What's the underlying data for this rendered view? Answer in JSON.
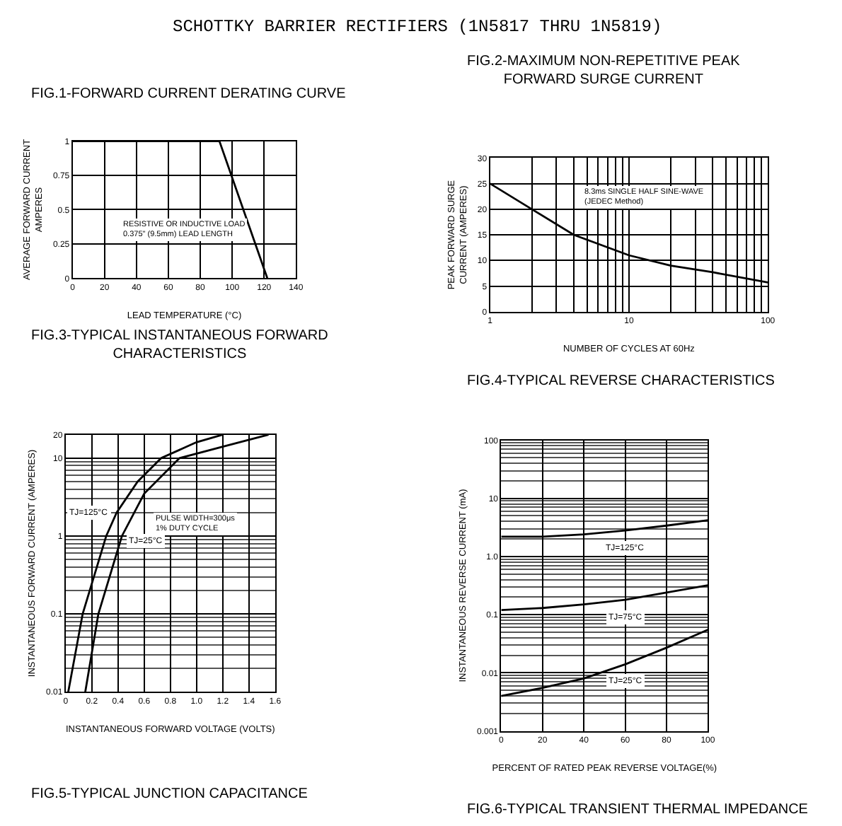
{
  "chart_data": [
    {
      "type": "other",
      "title": "SCHOTTKY BARRIER RECTIFIERS (1N5817 THRU 1N5819)"
    },
    {
      "type": "line",
      "title": "FIG.1-FORWARD CURRENT DERATING CURVE",
      "xlabel": "LEAD TEMPERATURE (°C)",
      "ylabel": "AVERAGE FORWARD CURRENT\nAMPERES",
      "x": [
        0,
        92,
        122
      ],
      "series": [
        {
          "color": "#000000",
          "values": [
            1,
            1,
            0
          ]
        }
      ],
      "xlim": [
        0,
        140
      ],
      "ylim": [
        0,
        1
      ],
      "xticks": [
        0,
        20,
        40,
        60,
        80,
        100,
        120,
        140
      ],
      "yticks": [
        0,
        0.25,
        0.5,
        0.75,
        1
      ],
      "grid": true,
      "annotations": [
        "RESISTIVE OR INDUCTIVE LOAD\n0.375\" (9.5mm) LEAD LENGTH"
      ]
    },
    {
      "type": "line",
      "title": "FIG.2-MAXIMUM NON-REPETITIVE PEAK\nFORWARD SURGE CURRENT",
      "xlabel": "NUMBER OF CYCLES AT 60Hz",
      "ylabel": "PEAK FORWARD SURGE\nCURRENT (AMPERES)",
      "x": [
        1,
        2,
        4,
        10,
        20,
        40,
        100
      ],
      "series": [
        {
          "color": "#000000",
          "values": [
            25,
            20,
            15,
            11,
            9,
            7.7,
            5.7
          ]
        }
      ],
      "xlim": [
        1,
        100
      ],
      "ylim": [
        0,
        30
      ],
      "xticks": [
        1,
        10,
        100
      ],
      "yticks": [
        0,
        5,
        10,
        15,
        20,
        25,
        30
      ],
      "log": "x",
      "grid": true,
      "annotations": [
        "8.3ms SINGLE HALF SINE-WAVE\n(JEDEC Method)"
      ]
    },
    {
      "type": "line",
      "title": "FIG.3-TYPICAL INSTANTANEOUS FORWARD\nCHARACTERISTICS",
      "xlabel": "INSTANTANEOUS FORWARD VOLTAGE (VOLTS)",
      "ylabel": "INSTANTANEOUS FORWARD CURRENT (AMPERES)",
      "series": [
        {
          "name": "TJ=125°C",
          "color": "#000000",
          "x": [
            0.02,
            0.13,
            0.31,
            0.39,
            0.55,
            0.73,
            1.0,
            1.2
          ],
          "values": [
            0.01,
            0.1,
            1,
            2,
            5,
            10,
            16,
            20
          ]
        },
        {
          "name": "TJ=25°C",
          "color": "#000000",
          "x": [
            0.15,
            0.25,
            0.43,
            0.6,
            0.87,
            1.2,
            1.55
          ],
          "values": [
            0.01,
            0.1,
            1,
            3.5,
            10,
            14,
            20
          ]
        }
      ],
      "xlim": [
        0,
        1.6
      ],
      "ylim": [
        0.01,
        20
      ],
      "xticks": [
        0,
        0.2,
        0.4,
        0.6,
        0.8,
        {
          "value": 1,
          "label": "1.0"
        },
        1.2,
        1.4,
        1.6
      ],
      "yticks": [
        0.01,
        0.1,
        1,
        10,
        20
      ],
      "log": "y",
      "grid": true,
      "annotations": [
        "PULSE WIDTH=300μs\n1% DUTY CYCLE"
      ]
    },
    {
      "type": "line",
      "title": "FIG.4-TYPICAL REVERSE CHARACTERISTICS",
      "xlabel": "PERCENT OF RATED PEAK REVERSE VOLTAGE(%)",
      "ylabel": "INSTANTANEOUS REVERSE CURRENT (mA)",
      "x": [
        0,
        20,
        40,
        60,
        80,
        100
      ],
      "series": [
        {
          "name": "TJ=125°C",
          "color": "#000000",
          "values": [
            2.2,
            2.2,
            2.4,
            2.8,
            3.4,
            4.2
          ]
        },
        {
          "name": "TJ=75°C",
          "color": "#000000",
          "values": [
            0.12,
            0.13,
            0.15,
            0.18,
            0.24,
            0.32
          ]
        },
        {
          "name": "TJ=25°C",
          "color": "#000000",
          "values": [
            0.004,
            0.0055,
            0.008,
            0.014,
            0.027,
            0.055
          ]
        }
      ],
      "xlim": [
        0,
        100
      ],
      "ylim": [
        0.001,
        100
      ],
      "xticks": [
        0,
        20,
        40,
        60,
        80,
        100
      ],
      "yticks": [
        0.001,
        0.01,
        0.1,
        {
          "value": 1,
          "label": "1.0"
        },
        10,
        100
      ],
      "log": "y",
      "grid": true
    },
    {
      "type": "other",
      "title": "FIG.5-TYPICAL JUNCTION CAPACITANCE"
    },
    {
      "type": "other",
      "title": "FIG.6-TYPICAL TRANSIENT THERMAL IMPEDANCE"
    }
  ]
}
